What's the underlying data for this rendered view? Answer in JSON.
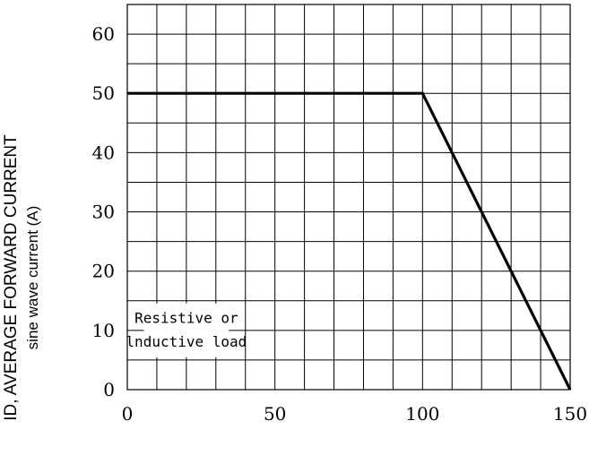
{
  "chart_data": {
    "type": "line",
    "title": "",
    "xlabel": "",
    "ylabel": "ID, AVERAGE FORWARD CURRENT",
    "ylabel_sub": "sine wave  current  (A)",
    "xlim": [
      0,
      150
    ],
    "ylim": [
      0,
      65
    ],
    "x_ticks": [
      "0",
      "50",
      "100",
      "150"
    ],
    "y_ticks": [
      "0",
      "10",
      "20",
      "30",
      "40",
      "50",
      "60"
    ],
    "grid": true,
    "series": [
      {
        "x": [
          0,
          100,
          150
        ],
        "y": [
          50,
          50,
          0
        ]
      }
    ],
    "annotation": [
      "Resistive or",
      "lnductive load"
    ]
  }
}
